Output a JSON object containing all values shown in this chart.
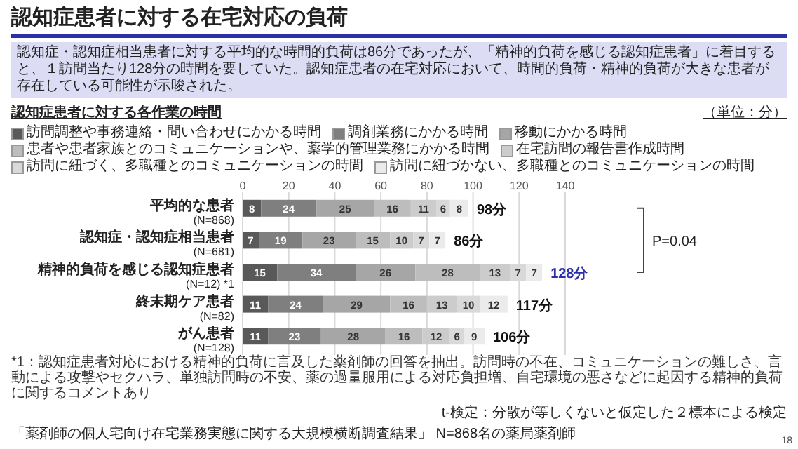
{
  "chart_data": {
    "type": "bar",
    "orientation": "horizontal",
    "stacked": true,
    "title": "認知症患者に対する在宅対応の負荷",
    "subtitle": "認知症・認知症相当患者に対する平均的な時間的負荷は86分であったが、「精神的負荷を感じる認知症患者」に着目すると、１訪問当たり128分の時間を要していた。認知症患者の在宅対応において、時間的負荷・精神的負荷が大きな患者が存在している可能性が示唆された。",
    "categories": [
      "平均的な患者\n(N=868)",
      "認知症・認知症相当患者\n(N=681)",
      "精神的負荷を感じる認知症患者\n(N=12) *1",
      "終末期ケア患者\n(N=82)",
      "がん患者\n(N=128)"
    ],
    "series": [
      {
        "name": "訪問調整や事務連絡・問い合わせにかかる時間",
        "color": "#595959",
        "values": [
          8,
          7,
          15,
          11,
          11
        ]
      },
      {
        "name": "調剤業務にかかる時間",
        "color": "#7f7f7f",
        "values": [
          24,
          19,
          34,
          24,
          23
        ]
      },
      {
        "name": "移動にかかる時間",
        "color": "#a6a6a6",
        "values": [
          25,
          23,
          26,
          29,
          28
        ]
      },
      {
        "name": "患者や患者家族とのコミュニケーションや、薬学的管理業務にかかる時間",
        "color": "#bdbdbd",
        "values": [
          16,
          15,
          28,
          16,
          16
        ]
      },
      {
        "name": "在宅訪問の報告書作成時間",
        "color": "#cccccc",
        "values": [
          11,
          10,
          13,
          13,
          12
        ]
      },
      {
        "name": "訪問に紐づく、多職種とのコミュニケーションの時間",
        "color": "#d9d9d9",
        "values": [
          6,
          7,
          7,
          10,
          6
        ]
      },
      {
        "name": "訪問に紐づかない、多職種とのコミュニケーションの時間",
        "color": "#ebebeb",
        "values": [
          8,
          7,
          7,
          12,
          9
        ]
      }
    ],
    "data_labels": true,
    "totals": [
      "98分",
      "86分",
      "128分",
      "117分",
      "106分"
    ],
    "xlim": [
      0,
      140
    ],
    "xticks": [
      0,
      20,
      40,
      60,
      80,
      100,
      120,
      140
    ],
    "grid": "x",
    "legend": "top",
    "annotations": [
      "認知症患者に対する各作業の時間",
      "（単位：分）",
      "*1：認知症患者対応における精神的負荷に言及した薬剤師の回答を抽出。訪問時の不在、コミュニケーションの難しさ、言動による攻撃やセクハラ、単独訪問時の不安、薬の過量服用による対応負担増、自宅環境の悪さなどに起因する精神的負荷に関するコメントあり",
      "P=0.04",
      "t-検定：分散が等しくないと仮定した２標本による検定",
      "「薬剤師の個人宅向け在宅業務実態に関する大規模横断調査結果」 N=868名の薬局薬剤師",
      "18"
    ]
  }
}
